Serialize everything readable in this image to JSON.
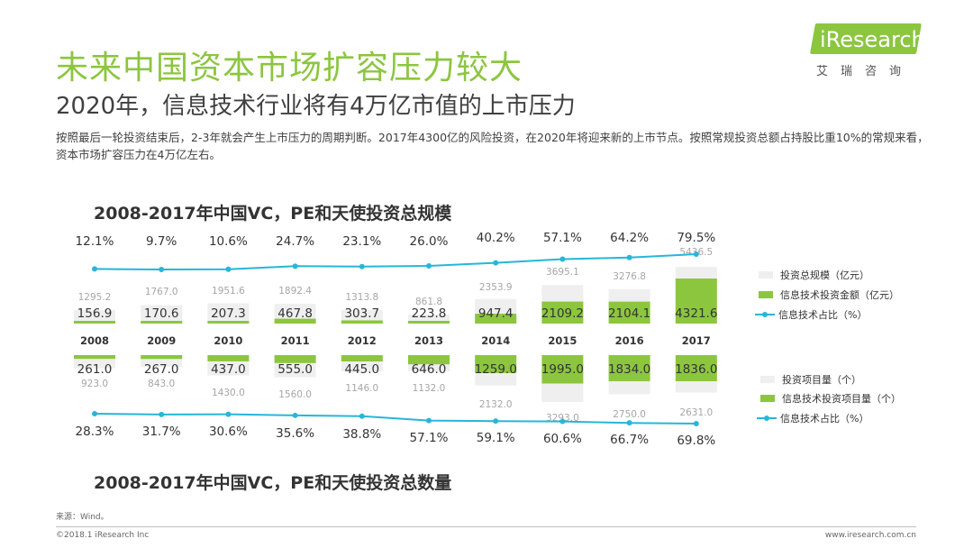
{
  "header": {
    "title": "未来中国资本市场扩容压力较大",
    "subtitle": "2020年，信息技术行业将有4万亿市值的上市压力",
    "description": "按照最后一轮投资结束后，2-3年就会产生上市压力的周期判断。2017年4300亿的风险投资，在2020年将迎来新的上市节点。按照常规投资总额占持股比重10%的常规来看，资本市场扩容压力在4万亿左右。"
  },
  "logo": {
    "text": "iResearch",
    "cn": "艾瑞咨询"
  },
  "colors": {
    "accent": "#8cc63f",
    "line": "#27b6d9",
    "total_bar": "#efefef",
    "title": "#8cc63f"
  },
  "chart_data": [
    {
      "type": "bar",
      "title": "2008-2017年中国VC，PE和天使投资总规模",
      "categories": [
        "2008",
        "2009",
        "2010",
        "2011",
        "2012",
        "2013",
        "2014",
        "2015",
        "2016",
        "2017"
      ],
      "series": [
        {
          "name": "投资总规模（亿元）",
          "values": [
            1295.2,
            1767.0,
            1951.6,
            1892.4,
            1313.8,
            861.8,
            2353.9,
            3695.1,
            3276.8,
            5436.5
          ]
        },
        {
          "name": "信息技术投资金额（亿元）",
          "values": [
            156.9,
            170.6,
            207.3,
            467.8,
            303.7,
            223.8,
            947.4,
            2109.2,
            2104.1,
            4321.6
          ]
        },
        {
          "name": "信息技术占比（%）",
          "values": [
            12.1,
            9.7,
            10.6,
            24.7,
            23.1,
            26.0,
            40.2,
            57.1,
            64.2,
            79.5
          ]
        }
      ]
    },
    {
      "type": "bar",
      "title": "2008-2017年中国VC，PE和天使投资总数量",
      "categories": [
        "2008",
        "2009",
        "2010",
        "2011",
        "2012",
        "2013",
        "2014",
        "2015",
        "2016",
        "2017"
      ],
      "series": [
        {
          "name": "投资项目量（个）",
          "values": [
            923.0,
            843.0,
            1430.0,
            1560.0,
            1146.0,
            1132.0,
            2132.0,
            3293.0,
            2750.0,
            2631.0
          ]
        },
        {
          "name": "信息技术投资项目量（个）",
          "values": [
            261.0,
            267.0,
            437.0,
            555.0,
            445.0,
            646.0,
            1259.0,
            1995.0,
            1834.0,
            1836.0
          ]
        },
        {
          "name": "信息技术占比（%）",
          "values": [
            28.3,
            31.7,
            30.6,
            35.6,
            38.8,
            57.1,
            59.1,
            60.6,
            66.7,
            69.8
          ]
        }
      ]
    }
  ],
  "chart_labels": {
    "amount_pct": [
      "12.1%",
      "9.7%",
      "10.6%",
      "24.7%",
      "23.1%",
      "26.0%",
      "40.2%",
      "57.1%",
      "64.2%",
      "79.5%"
    ],
    "amount_total": [
      "1295.2",
      "1767.0",
      "1951.6",
      "1892.4",
      "1313.8",
      "861.8",
      "2353.9",
      "3695.1",
      "3276.8",
      "5436.5"
    ],
    "amount_it": [
      "156.9",
      "170.6",
      "207.3",
      "467.8",
      "303.7",
      "223.8",
      "947.4",
      "2109.2",
      "2104.1",
      "4321.6"
    ],
    "count_it": [
      "261.0",
      "267.0",
      "437.0",
      "555.0",
      "445.0",
      "646.0",
      "1259.0",
      "1995.0",
      "1834.0",
      "1836.0"
    ],
    "count_total": [
      "923.0",
      "843.0",
      "1430.0",
      "1560.0",
      "1146.0",
      "1132.0",
      "2132.0",
      "3293.0",
      "2750.0",
      "2631.0"
    ],
    "count_pct": [
      "28.3%",
      "31.7%",
      "30.6%",
      "35.6%",
      "38.8%",
      "57.1%",
      "59.1%",
      "60.6%",
      "66.7%",
      "69.8%"
    ]
  },
  "footer": {
    "source": "来源：Wind。",
    "copyright": "©2018.1 iResearch Inc",
    "website": "www.iresearch.com.cn"
  }
}
